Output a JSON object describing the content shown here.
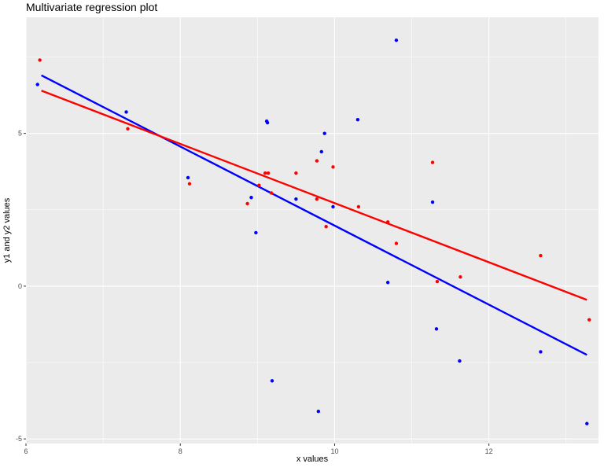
{
  "chart_data": {
    "type": "scatter",
    "title": "Multivariate regression plot",
    "xlabel": "x values",
    "ylabel": "y1 and y2 values",
    "xlim": [
      6.0,
      13.42
    ],
    "ylim": [
      -5.15,
      8.8
    ],
    "x_ticks": [
      6,
      8,
      10,
      12
    ],
    "x_minor_ticks": [
      7,
      9,
      11,
      13
    ],
    "y_ticks": [
      -5,
      0,
      5
    ],
    "y_minor_ticks": [
      -2.5,
      2.5,
      7.5
    ],
    "grid": true,
    "legend": "none",
    "colors": {
      "panel_background": "#ebebeb",
      "grid": "#ffffff"
    },
    "series": [
      {
        "color": "#0000ff",
        "points": [
          [
            6.15,
            6.6
          ],
          [
            7.3,
            5.7
          ],
          [
            8.1,
            3.55
          ],
          [
            8.92,
            2.9
          ],
          [
            8.98,
            1.75
          ],
          [
            9.12,
            5.4
          ],
          [
            9.13,
            5.35
          ],
          [
            9.19,
            -3.1
          ],
          [
            9.5,
            2.85
          ],
          [
            9.79,
            -4.1
          ],
          [
            9.83,
            4.4
          ],
          [
            9.87,
            5.0
          ],
          [
            9.98,
            2.6
          ],
          [
            10.3,
            5.45
          ],
          [
            10.69,
            0.12
          ],
          [
            10.8,
            8.05
          ],
          [
            11.27,
            2.75
          ],
          [
            11.32,
            -1.4
          ],
          [
            11.62,
            -2.45
          ],
          [
            12.67,
            -2.15
          ],
          [
            13.27,
            -4.5
          ]
        ],
        "fit": [
          [
            6.2,
            6.9
          ],
          [
            13.27,
            -2.25
          ]
        ]
      },
      {
        "color": "#ff0000",
        "points": [
          [
            6.18,
            7.4
          ],
          [
            7.32,
            5.15
          ],
          [
            8.12,
            3.35
          ],
          [
            8.87,
            2.7
          ],
          [
            9.02,
            3.3
          ],
          [
            9.1,
            3.7
          ],
          [
            9.14,
            3.7
          ],
          [
            9.18,
            3.05
          ],
          [
            9.5,
            3.7
          ],
          [
            9.77,
            4.1
          ],
          [
            9.77,
            2.85
          ],
          [
            9.89,
            1.95
          ],
          [
            9.98,
            3.9
          ],
          [
            10.31,
            2.6
          ],
          [
            10.69,
            2.1
          ],
          [
            10.8,
            1.4
          ],
          [
            11.27,
            4.05
          ],
          [
            11.33,
            0.15
          ],
          [
            11.63,
            0.3
          ],
          [
            12.67,
            1.0
          ],
          [
            13.3,
            -1.1
          ]
        ],
        "fit": [
          [
            6.2,
            6.4
          ],
          [
            13.27,
            -0.45
          ]
        ]
      }
    ]
  }
}
